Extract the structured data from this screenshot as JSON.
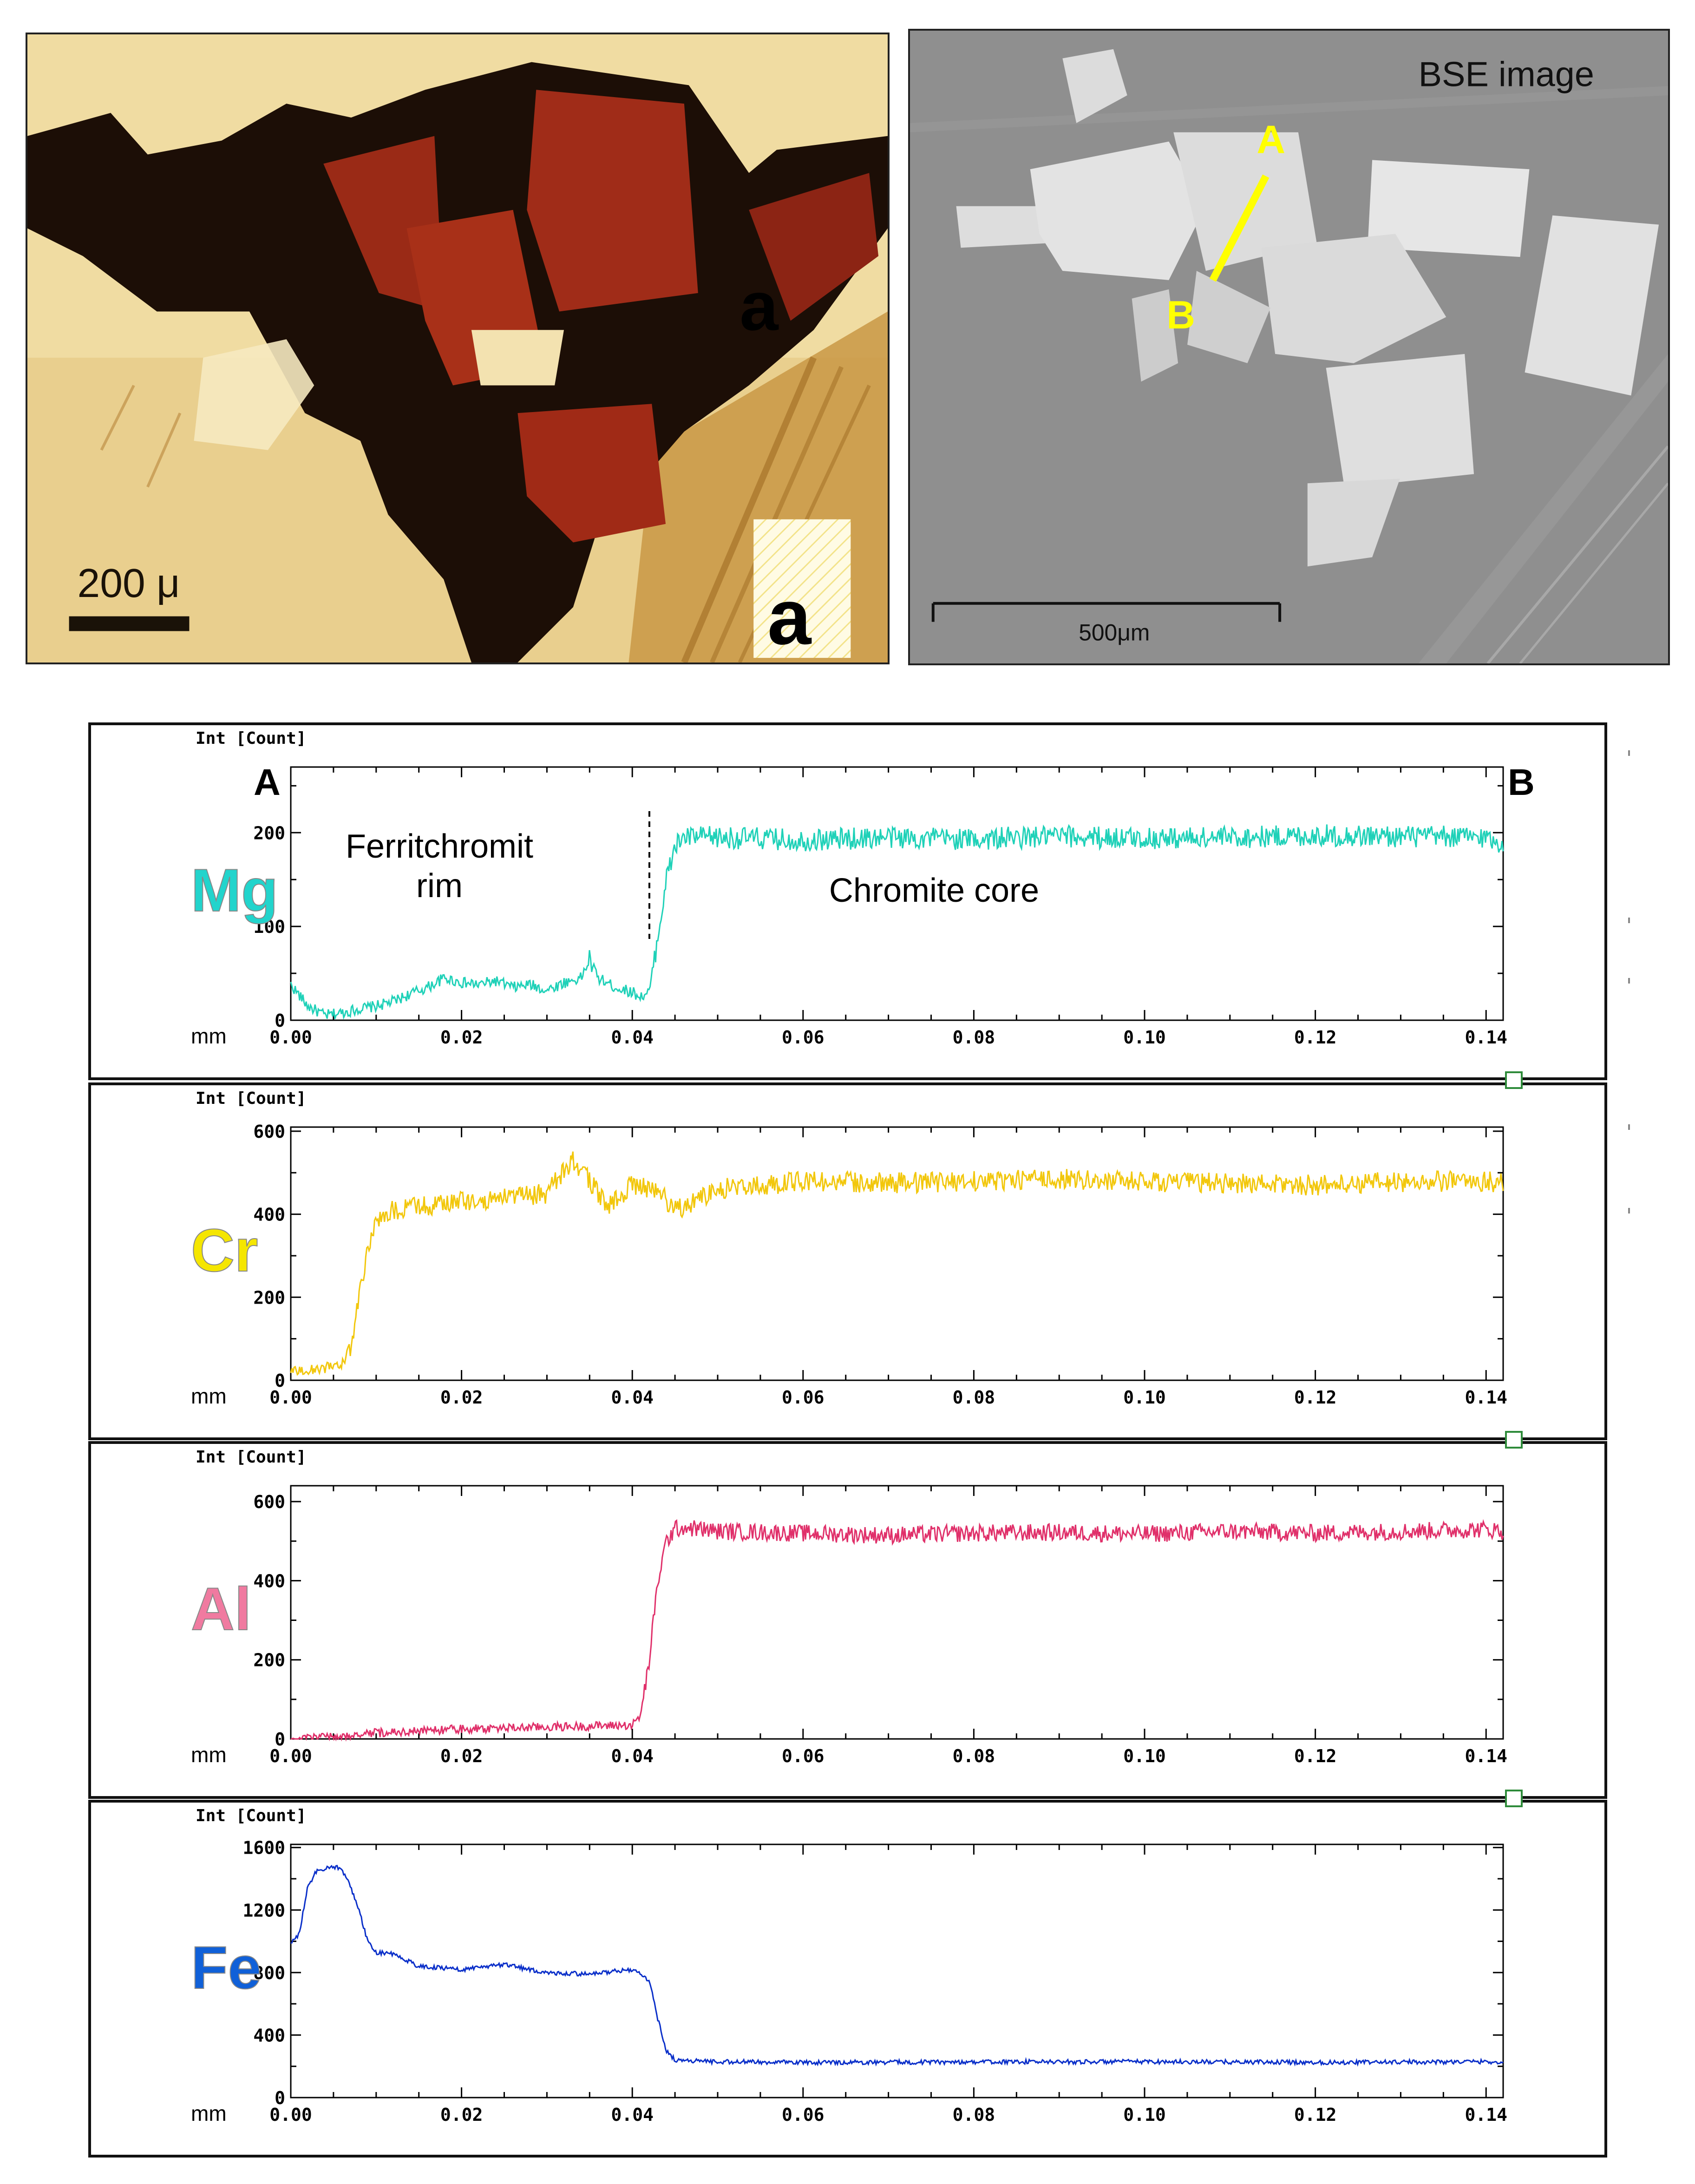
{
  "figure": {
    "optical_photo": {
      "scale_label": "200 μ",
      "grain_label": "a",
      "corner_label": "a"
    },
    "bse_photo": {
      "caption": "BSE image",
      "point_a": "A",
      "point_b": "B",
      "scale_label": "500μm"
    }
  },
  "chart_data": [
    {
      "type": "line",
      "element": "Mg",
      "element_color": "#22d4cc",
      "color": "#1fd1b8",
      "ylabel": "Int [Count]",
      "xlabel": "mm",
      "xlim": [
        0,
        0.142
      ],
      "ylim": [
        0,
        270
      ],
      "yticks": [
        0,
        100,
        200
      ],
      "xticks": [
        0.0,
        0.02,
        0.04,
        0.06,
        0.08,
        0.1,
        0.12,
        0.14
      ],
      "xtick_labels": [
        "0.00",
        "0.02",
        "0.04",
        "0.06",
        "0.08",
        "0.10",
        "0.12",
        "0.14"
      ],
      "start_label": "A",
      "end_label": "B",
      "annotations": [
        {
          "text": [
            "Ferritchromit",
            "rim"
          ]
        },
        {
          "text": [
            "Chromite core"
          ]
        }
      ],
      "boundary_x": 0.042,
      "x": [
        0.0,
        0.002,
        0.004,
        0.006,
        0.008,
        0.01,
        0.012,
        0.014,
        0.016,
        0.018,
        0.02,
        0.022,
        0.024,
        0.026,
        0.028,
        0.03,
        0.032,
        0.034,
        0.035,
        0.036,
        0.038,
        0.04,
        0.041,
        0.042,
        0.043,
        0.044,
        0.045,
        0.046,
        0.05,
        0.06,
        0.07,
        0.08,
        0.09,
        0.1,
        0.11,
        0.12,
        0.13,
        0.14,
        0.142
      ],
      "y": [
        38,
        15,
        5,
        8,
        12,
        15,
        20,
        28,
        35,
        45,
        40,
        38,
        42,
        35,
        38,
        32,
        40,
        45,
        65,
        45,
        35,
        30,
        25,
        30,
        90,
        150,
        185,
        195,
        195,
        192,
        195,
        193,
        196,
        194,
        195,
        197,
        196,
        195,
        188
      ],
      "noise": 12
    },
    {
      "type": "line",
      "element": "Cr",
      "element_color": "#f5e600",
      "color": "#f2c70c",
      "ylabel": "Int [Count]",
      "xlabel": "mm",
      "xlim": [
        0,
        0.142
      ],
      "ylim": [
        0,
        610
      ],
      "yticks": [
        0,
        200,
        400,
        600
      ],
      "xticks": [
        0.0,
        0.02,
        0.04,
        0.06,
        0.08,
        0.1,
        0.12,
        0.14
      ],
      "xtick_labels": [
        "0.00",
        "0.02",
        "0.04",
        "0.06",
        "0.08",
        "0.10",
        "0.12",
        "0.14"
      ],
      "x": [
        0.0,
        0.002,
        0.004,
        0.006,
        0.007,
        0.008,
        0.009,
        0.01,
        0.012,
        0.015,
        0.02,
        0.025,
        0.03,
        0.033,
        0.035,
        0.037,
        0.04,
        0.043,
        0.045,
        0.05,
        0.06,
        0.07,
        0.08,
        0.09,
        0.1,
        0.11,
        0.12,
        0.13,
        0.14,
        0.142
      ],
      "y": [
        20,
        25,
        30,
        40,
        80,
        200,
        320,
        380,
        410,
        420,
        430,
        440,
        450,
        530,
        480,
        420,
        470,
        460,
        410,
        460,
        480,
        475,
        480,
        485,
        478,
        475,
        470,
        478,
        480,
        475
      ],
      "noise": 25
    },
    {
      "type": "line",
      "element": "Al",
      "element_color": "#f07aa0",
      "color": "#e0306a",
      "ylabel": "Int [Count]",
      "xlabel": "mm",
      "xlim": [
        0,
        0.142
      ],
      "ylim": [
        0,
        640
      ],
      "yticks": [
        0,
        200,
        400,
        600
      ],
      "xticks": [
        0.0,
        0.02,
        0.04,
        0.06,
        0.08,
        0.1,
        0.12,
        0.14
      ],
      "xtick_labels": [
        "0.00",
        "0.02",
        "0.04",
        "0.06",
        "0.08",
        "0.10",
        "0.12",
        "0.14"
      ],
      "x": [
        0.0,
        0.005,
        0.01,
        0.02,
        0.03,
        0.04,
        0.041,
        0.042,
        0.043,
        0.044,
        0.045,
        0.046,
        0.05,
        0.06,
        0.07,
        0.08,
        0.09,
        0.1,
        0.11,
        0.12,
        0.13,
        0.14,
        0.142
      ],
      "y": [
        2,
        5,
        15,
        25,
        30,
        35,
        60,
        200,
        400,
        500,
        530,
        535,
        525,
        520,
        515,
        520,
        522,
        518,
        525,
        520,
        525,
        530,
        525
      ],
      "noise": 22
    },
    {
      "type": "line",
      "element": "Fe",
      "element_color": "#1060d8",
      "color": "#0a2fc9",
      "ylabel": "Int [Count]",
      "xlabel": "mm",
      "xlim": [
        0,
        0.142
      ],
      "ylim": [
        0,
        1620
      ],
      "yticks": [
        0,
        400,
        800,
        1200,
        1600
      ],
      "xticks": [
        0.0,
        0.02,
        0.04,
        0.06,
        0.08,
        0.1,
        0.12,
        0.14
      ],
      "xtick_labels": [
        "0.00",
        "0.02",
        "0.04",
        "0.06",
        "0.08",
        "0.10",
        "0.12",
        "0.14"
      ],
      "x": [
        0.0,
        0.001,
        0.002,
        0.003,
        0.005,
        0.006,
        0.007,
        0.008,
        0.009,
        0.01,
        0.012,
        0.015,
        0.02,
        0.025,
        0.03,
        0.035,
        0.04,
        0.042,
        0.043,
        0.044,
        0.045,
        0.05,
        0.06,
        0.08,
        0.1,
        0.12,
        0.14,
        0.142
      ],
      "y": [
        980,
        1050,
        1350,
        1450,
        1480,
        1460,
        1350,
        1200,
        1000,
        930,
        920,
        840,
        820,
        850,
        800,
        790,
        820,
        750,
        500,
        300,
        240,
        230,
        225,
        228,
        230,
        225,
        230,
        225
      ],
      "noise": 14
    }
  ]
}
